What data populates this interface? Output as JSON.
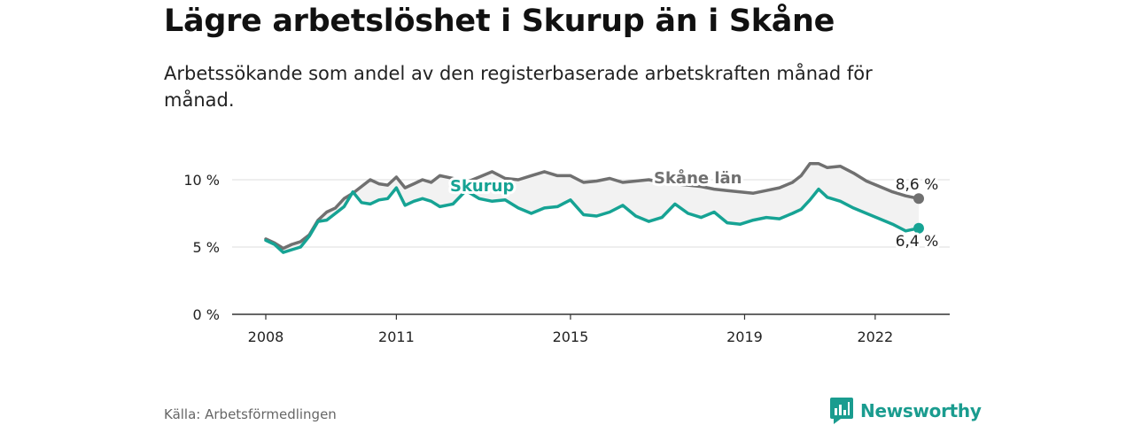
{
  "title": "Lägre arbetslöshet i Skurup än i Skåne",
  "subtitle": "Arbetssökande som andel av den registerbaserade arbetskraften månad för månad.",
  "source": "Källa: Arbetsförmedlingen",
  "brand": "Newsworthy",
  "colors": {
    "skurup": "#16a394",
    "skane": "#707070",
    "band": "#f2f2f2",
    "grid": "#dddddd",
    "axis": "#333333"
  },
  "chart_data": {
    "type": "line",
    "title": "Lägre arbetslöshet i Skurup än i Skåne",
    "xlabel": "",
    "ylabel": "",
    "ylim": [
      0,
      10
    ],
    "xlim": [
      2008.0,
      2023.7
    ],
    "yticks": [
      0,
      5,
      10
    ],
    "yticklabels": [
      "0 %",
      "5 %",
      "10 %"
    ],
    "xticks": [
      2008,
      2011,
      2015,
      2019,
      2022
    ],
    "xticklabels": [
      "2008",
      "2011",
      "2015",
      "2019",
      "2022"
    ],
    "series": [
      {
        "name": "Skåne län",
        "x": [
          2008.0,
          2008.2,
          2008.4,
          2008.6,
          2008.8,
          2009.0,
          2009.2,
          2009.4,
          2009.6,
          2009.8,
          2010.0,
          2010.2,
          2010.4,
          2010.6,
          2010.8,
          2011.0,
          2011.2,
          2011.4,
          2011.6,
          2011.8,
          2012.0,
          2012.3,
          2012.6,
          2012.9,
          2013.2,
          2013.5,
          2013.8,
          2014.1,
          2014.4,
          2014.7,
          2015.0,
          2015.3,
          2015.6,
          2015.9,
          2016.2,
          2016.5,
          2016.8,
          2017.1,
          2017.4,
          2017.7,
          2018.0,
          2018.3,
          2018.6,
          2018.9,
          2019.2,
          2019.5,
          2019.8,
          2020.1,
          2020.3,
          2020.5,
          2020.7,
          2020.9,
          2021.2,
          2021.5,
          2021.8,
          2022.1,
          2022.4,
          2022.7,
          2023.0
        ],
        "y": [
          5.6,
          5.3,
          4.9,
          5.2,
          5.4,
          5.9,
          7.0,
          7.6,
          7.9,
          8.6,
          9.0,
          9.5,
          10.0,
          9.7,
          9.6,
          10.2,
          9.4,
          9.7,
          10.0,
          9.8,
          10.3,
          10.1,
          9.8,
          10.2,
          10.6,
          10.1,
          10.0,
          10.3,
          10.6,
          10.3,
          10.3,
          9.8,
          9.9,
          10.1,
          9.8,
          9.9,
          10.0,
          9.8,
          9.7,
          9.6,
          9.5,
          9.3,
          9.2,
          9.1,
          9.0,
          9.2,
          9.4,
          9.8,
          10.3,
          11.2,
          11.2,
          10.9,
          11.0,
          10.5,
          9.9,
          9.5,
          9.1,
          8.8,
          8.6
        ]
      },
      {
        "name": "Skurup",
        "x": [
          2008.0,
          2008.2,
          2008.4,
          2008.6,
          2008.8,
          2009.0,
          2009.2,
          2009.4,
          2009.6,
          2009.8,
          2010.0,
          2010.2,
          2010.4,
          2010.6,
          2010.8,
          2011.0,
          2011.2,
          2011.4,
          2011.6,
          2011.8,
          2012.0,
          2012.3,
          2012.6,
          2012.9,
          2013.2,
          2013.5,
          2013.8,
          2014.1,
          2014.4,
          2014.7,
          2015.0,
          2015.3,
          2015.6,
          2015.9,
          2016.2,
          2016.5,
          2016.8,
          2017.1,
          2017.4,
          2017.7,
          2018.0,
          2018.3,
          2018.6,
          2018.9,
          2019.2,
          2019.5,
          2019.8,
          2020.1,
          2020.3,
          2020.5,
          2020.7,
          2020.9,
          2021.2,
          2021.5,
          2021.8,
          2022.1,
          2022.4,
          2022.7,
          2023.0
        ],
        "y": [
          5.5,
          5.2,
          4.6,
          4.8,
          5.0,
          5.8,
          6.9,
          7.0,
          7.5,
          8.0,
          9.1,
          8.3,
          8.2,
          8.5,
          8.6,
          9.4,
          8.1,
          8.4,
          8.6,
          8.4,
          8.0,
          8.2,
          9.2,
          8.6,
          8.4,
          8.5,
          7.9,
          7.5,
          7.9,
          8.0,
          8.5,
          7.4,
          7.3,
          7.6,
          8.1,
          7.3,
          6.9,
          7.2,
          8.2,
          7.5,
          7.2,
          7.6,
          6.8,
          6.7,
          7.0,
          7.2,
          7.1,
          7.5,
          7.8,
          8.5,
          9.3,
          8.7,
          8.4,
          7.9,
          7.5,
          7.1,
          6.7,
          6.2,
          6.4
        ]
      }
    ],
    "labels": {
      "skurup": "Skurup",
      "skane": "Skåne län"
    },
    "end_labels": {
      "skane": "8,6 %",
      "skurup": "6,4 %"
    }
  }
}
